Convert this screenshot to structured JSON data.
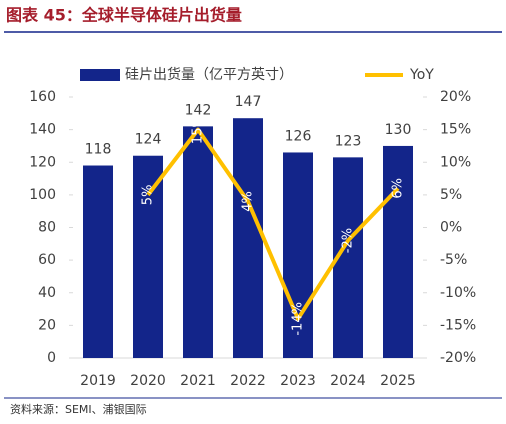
{
  "title": "图表 45：全球半导体硅片出货量",
  "source": "资料来源：SEMI、浦银国际",
  "chart_data": {
    "type": "bar-line",
    "categories": [
      "2019",
      "2020",
      "2021",
      "2022",
      "2023",
      "2024",
      "2025"
    ],
    "series": [
      {
        "name": "硅片出货量（亿平方英寸）",
        "type": "bar",
        "color": "#13258a",
        "values": [
          118,
          124,
          142,
          147,
          126,
          123,
          130
        ]
      },
      {
        "name": "YoY",
        "type": "line",
        "axis": "y2",
        "color": "#ffc000",
        "values": [
          null,
          5,
          15,
          4,
          -14,
          -2,
          6
        ],
        "value_labels": [
          null,
          "5%",
          "15%",
          "4%",
          "-14%",
          "-2%",
          "6%"
        ]
      }
    ],
    "ylim": [
      0,
      160
    ],
    "yticks": [
      0,
      20,
      40,
      60,
      80,
      100,
      120,
      140,
      160
    ],
    "y2lim": [
      -20,
      20
    ],
    "y2ticks": [
      {
        "value": -20,
        "label": "-20%"
      },
      {
        "value": -15,
        "label": "-15%"
      },
      {
        "value": -10,
        "label": "-10%"
      },
      {
        "value": -5,
        "label": "-5%"
      },
      {
        "value": 0,
        "label": "0%"
      },
      {
        "value": 5,
        "label": "5%"
      },
      {
        "value": 10,
        "label": "10%"
      },
      {
        "value": 15,
        "label": "15%"
      },
      {
        "value": 20,
        "label": "20%"
      }
    ],
    "legend": "top"
  }
}
